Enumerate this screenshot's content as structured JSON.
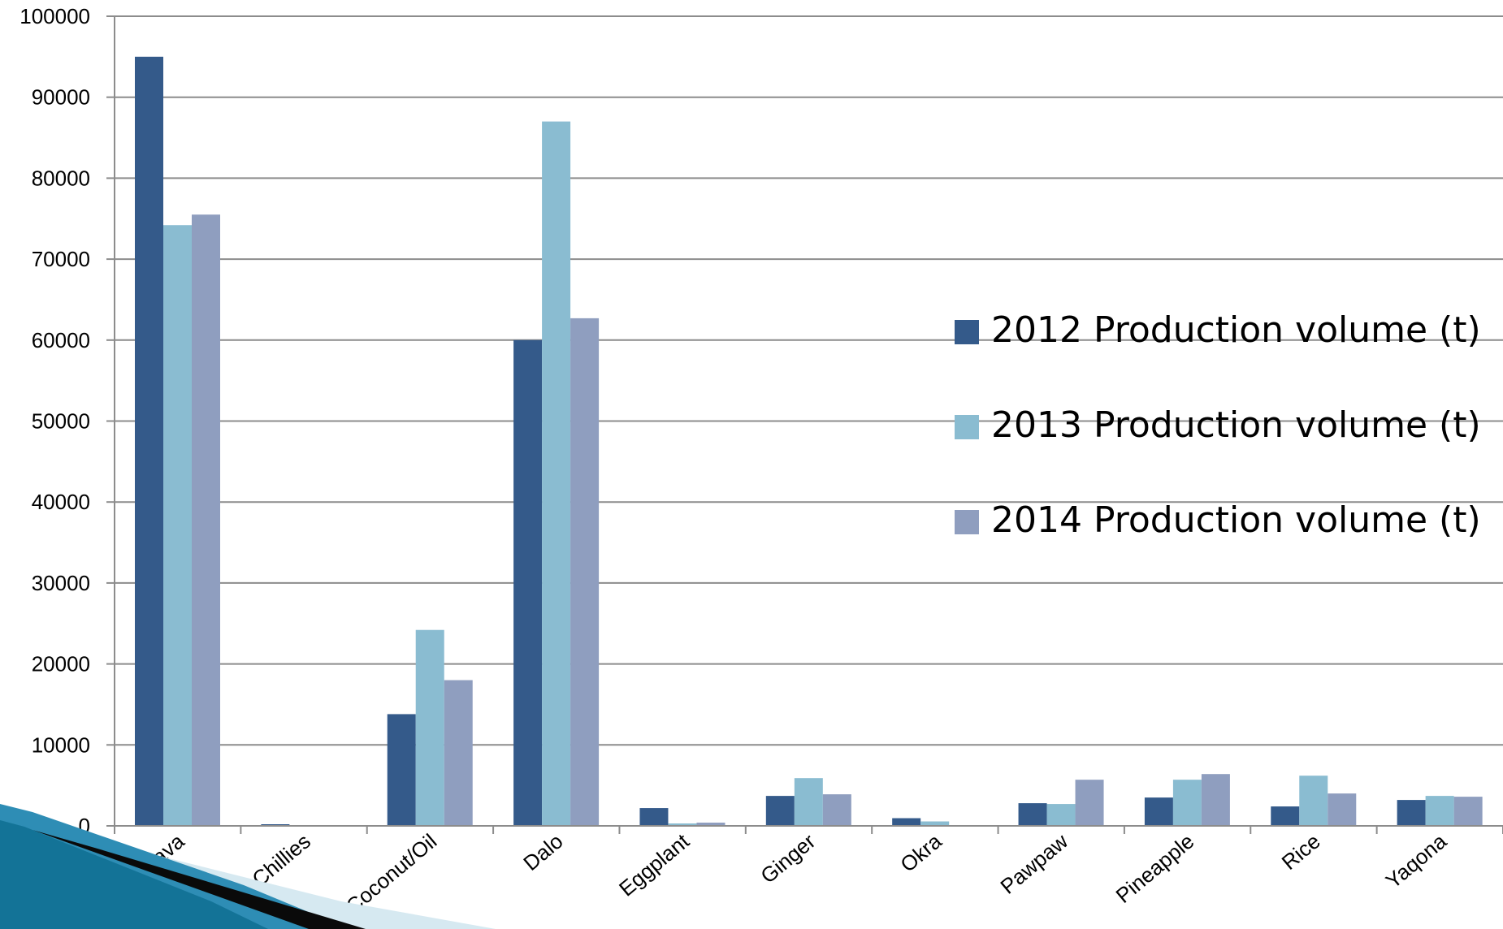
{
  "chart_data": {
    "type": "bar",
    "categories": [
      "Cassava",
      "Chillies",
      "Coconut/Oil",
      "Dalo",
      "Eggplant",
      "Ginger",
      "Okra",
      "Pawpaw",
      "Pineapple",
      "Rice",
      "Yaqona"
    ],
    "series": [
      {
        "name": "2012 Production volume (t)",
        "color": "#345a8a",
        "values": [
          95000,
          200,
          13800,
          60000,
          2200,
          3700,
          950,
          2800,
          3500,
          2400,
          3200
        ]
      },
      {
        "name": "2013 Production volume (t)",
        "color": "#8abcd1",
        "values": [
          74200,
          0,
          24200,
          87000,
          300,
          5900,
          550,
          2700,
          5700,
          6200,
          3700
        ]
      },
      {
        "name": "2014 Production volume (t)",
        "color": "#8f9ebf",
        "values": [
          75500,
          0,
          18000,
          62700,
          400,
          3900,
          100,
          5700,
          6400,
          4000,
          3600
        ]
      }
    ],
    "yticks": [
      "0",
      "10000",
      "20000",
      "30000",
      "40000",
      "50000",
      "60000",
      "70000",
      "80000",
      "90000",
      "100000"
    ],
    "ylim": [
      0,
      100000
    ],
    "grid": true,
    "legend_position": "right"
  }
}
